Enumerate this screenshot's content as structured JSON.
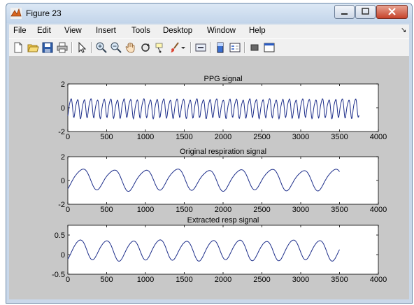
{
  "window": {
    "title": "Figure 23",
    "app_icon": "matlab-figure-icon"
  },
  "window_buttons": [
    {
      "name": "minimize-button",
      "icon": "minimize-icon"
    },
    {
      "name": "maximize-button",
      "icon": "maximize-icon"
    },
    {
      "name": "close-button",
      "icon": "close-icon"
    }
  ],
  "menu": {
    "items": [
      "File",
      "Edit",
      "View",
      "Insert",
      "Tools",
      "Desktop",
      "Window",
      "Help"
    ],
    "overflow_glyph": "↘"
  },
  "toolbar": {
    "icons": [
      "new-figure-icon",
      "open-file-icon",
      "save-icon",
      "print-icon",
      "pointer-icon",
      "zoom-in-icon",
      "zoom-out-icon",
      "pan-icon",
      "rotate-3d-icon",
      "data-cursor-icon",
      "brush-icon",
      "link-plot-icon",
      "colorbar-icon",
      "legend-icon",
      "hide-plot-tools-icon",
      "show-plot-tools-icon"
    ]
  },
  "colors": {
    "line": "#1d2e8a",
    "axes_bg": "#ffffff",
    "figure_bg": "#c8c8c8"
  },
  "chart_data": [
    {
      "type": "line",
      "title": "PPG signal",
      "xlabel": "",
      "ylabel": "",
      "xlim": [
        0,
        4000
      ],
      "ylim": [
        -2,
        2
      ],
      "xticks": [
        0,
        500,
        1000,
        1500,
        2000,
        2500,
        3000,
        3500,
        4000
      ],
      "yticks": [
        -2,
        0,
        2
      ],
      "series": [
        {
          "x_start": 0,
          "x_end": 3750,
          "mean": 0.0,
          "amplitude": 0.75,
          "cycles": 44,
          "harmonic": 0.2,
          "samples": 750
        }
      ]
    },
    {
      "type": "line",
      "title": "Original respiration signal",
      "xlabel": "",
      "ylabel": "",
      "xlim": [
        0,
        4000
      ],
      "ylim": [
        -2,
        2
      ],
      "xticks": [
        0,
        500,
        1000,
        1500,
        2000,
        2500,
        3000,
        3500,
        4000
      ],
      "yticks": [
        -2,
        0,
        2
      ],
      "series": [
        {
          "x_start": 0,
          "x_end": 3500,
          "mean": 0.1,
          "amplitude": 0.85,
          "cycles": 8.6,
          "harmonic": 0.15,
          "samples": 500
        }
      ]
    },
    {
      "type": "line",
      "title": "Extracted resp signal",
      "xlabel": "",
      "ylabel": "",
      "xlim": [
        0,
        4000
      ],
      "ylim": [
        -0.5,
        0.75
      ],
      "xticks": [
        0,
        500,
        1000,
        1500,
        2000,
        2500,
        3000,
        3500,
        4000
      ],
      "yticks": [
        -0.5,
        0,
        0.5
      ],
      "series": [
        {
          "x_start": 0,
          "x_end": 3500,
          "mean": 0.12,
          "amplitude": 0.25,
          "cycles": 10.2,
          "harmonic": 0.1,
          "samples": 500
        }
      ]
    }
  ]
}
